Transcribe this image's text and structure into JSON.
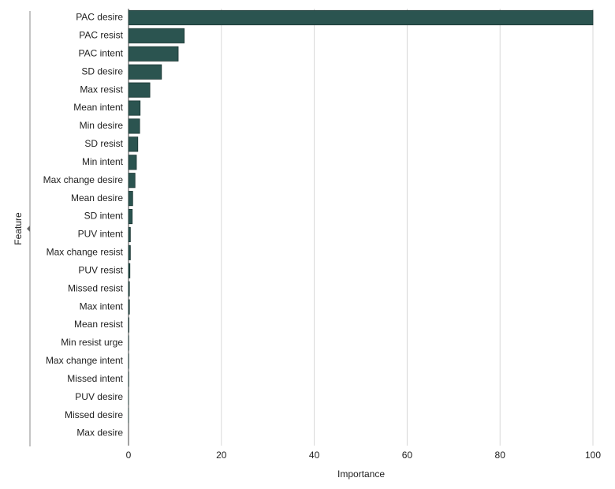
{
  "chart_data": {
    "type": "bar",
    "orientation": "horizontal",
    "categories": [
      "PAC desire",
      "PAC resist",
      "PAC intent",
      "SD desire",
      "Max resist",
      "Mean intent",
      "Min desire",
      "SD resist",
      "Min intent",
      "Max change desire",
      "Mean desire",
      "SD intent",
      "PUV intent",
      "Max change resist",
      "PUV resist",
      "Missed resist",
      "Max intent",
      "Mean resist",
      "Min resist urge",
      "Max change intent",
      "Missed intent",
      "PUV desire",
      "Missed desire",
      "Max desire"
    ],
    "values": [
      100,
      12.0,
      10.7,
      7.1,
      4.6,
      2.5,
      2.4,
      2.0,
      1.7,
      1.4,
      0.9,
      0.8,
      0.4,
      0.4,
      0.3,
      0.2,
      0.2,
      0.1,
      0.05,
      0.05,
      0.05,
      0.02,
      0.01,
      0
    ],
    "color": "#2b5450",
    "xlabel": "Importance",
    "ylabel": "Feature",
    "xlim": [
      0,
      100
    ],
    "xticks": [
      0,
      20,
      40,
      60,
      80,
      100
    ],
    "grid": true
  }
}
